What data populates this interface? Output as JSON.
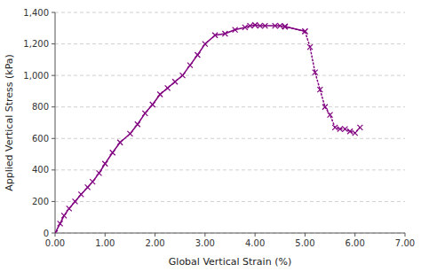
{
  "chart_data": {
    "type": "line",
    "xlabel": "Global Vertical Strain (%)",
    "ylabel": "Applied Vertical Stress (kPa)",
    "xlim": [
      0,
      7.0
    ],
    "ylim": [
      0,
      1400
    ],
    "xticks": [
      {
        "value": 0.0,
        "label": "0.00"
      },
      {
        "value": 1.0,
        "label": "1.00"
      },
      {
        "value": 2.0,
        "label": "2.00"
      },
      {
        "value": 3.0,
        "label": "3.00"
      },
      {
        "value": 4.0,
        "label": "4.00"
      },
      {
        "value": 5.0,
        "label": "5.00"
      },
      {
        "value": 6.0,
        "label": "6.00"
      },
      {
        "value": 7.0,
        "label": "7.00"
      }
    ],
    "yticks": [
      0,
      200,
      400,
      600,
      800,
      {
        "value": 1000,
        "label": "1,000"
      },
      {
        "value": 1200,
        "label": "1,200"
      },
      {
        "value": 1400,
        "label": "1,400"
      }
    ],
    "grid": "y",
    "series": [
      {
        "color": "#800080",
        "marker": "x",
        "line_style": "solid",
        "x": [
          0.0,
          0.1,
          0.18,
          0.28,
          0.4,
          0.52,
          0.65,
          0.75,
          0.88,
          1.0,
          1.15,
          1.3,
          1.5,
          1.65,
          1.8,
          1.95,
          2.1,
          2.25,
          2.4,
          2.55,
          2.7,
          2.85,
          3.0,
          3.2,
          3.4,
          3.6,
          3.8,
          3.9,
          4.0,
          4.1,
          4.2,
          4.4,
          4.5,
          4.6,
          5.0
        ],
        "values": [
          0,
          60,
          110,
          155,
          200,
          245,
          290,
          325,
          380,
          440,
          510,
          575,
          630,
          690,
          760,
          815,
          880,
          920,
          960,
          1000,
          1065,
          1130,
          1200,
          1255,
          1265,
          1290,
          1305,
          1315,
          1320,
          1315,
          1315,
          1315,
          1315,
          1310,
          1280
        ]
      },
      {
        "color": "#800080",
        "marker": "x",
        "line_style": "dotted",
        "x": [
          4.6,
          5.0,
          5.1,
          5.2,
          5.3,
          5.4,
          5.5,
          5.6,
          5.7,
          5.8,
          5.9,
          6.0,
          6.1
        ],
        "values": [
          1310,
          1280,
          1180,
          1020,
          910,
          800,
          750,
          670,
          660,
          660,
          645,
          635,
          670
        ]
      }
    ]
  }
}
